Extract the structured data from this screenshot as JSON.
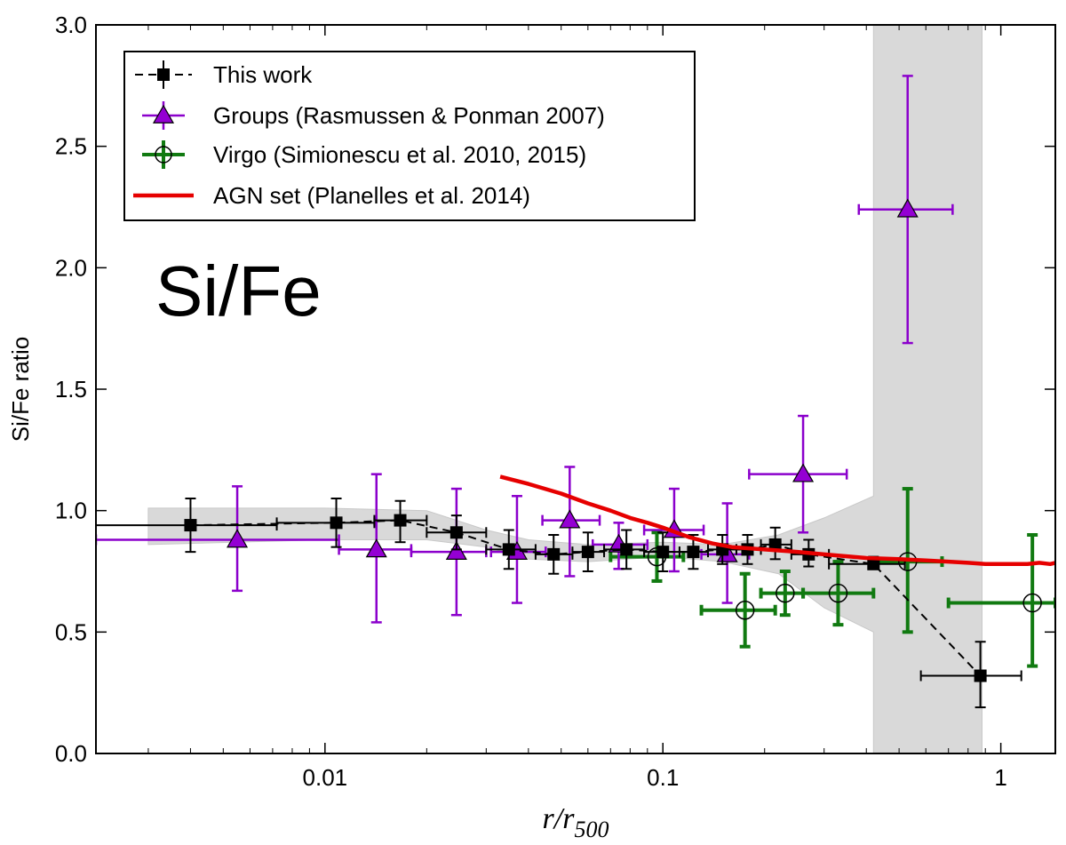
{
  "chart_data": {
    "type": "scatter",
    "annotation": "Si/Fe",
    "xlabel": "r/r500",
    "ylabel": "Si/Fe ratio",
    "xscale": "log",
    "xlim": [
      0.0021,
      1.45
    ],
    "ylim": [
      0.0,
      3.0
    ],
    "x_ticks": [
      {
        "value": 0.01,
        "label": "0.01"
      },
      {
        "value": 0.1,
        "label": "0.1"
      },
      {
        "value": 1,
        "label": "1"
      }
    ],
    "y_ticks": [
      {
        "value": 0.0,
        "label": "0.0"
      },
      {
        "value": 0.5,
        "label": "0.5"
      },
      {
        "value": 1.0,
        "label": "1.0"
      },
      {
        "value": 1.5,
        "label": "1.5"
      },
      {
        "value": 2.0,
        "label": "2.0"
      },
      {
        "value": 2.5,
        "label": "2.5"
      },
      {
        "value": 3.0,
        "label": "3.0"
      }
    ],
    "legend_position": "top-left",
    "colors": {
      "this_work": "#000000",
      "groups": "#8b00cc",
      "groups_marker": "#9400d3",
      "virgo": "#117a11",
      "agn": "#e60000",
      "band": "#d9d9d9"
    },
    "series": [
      {
        "name": "This work",
        "marker": "square",
        "linestyle": "dashed",
        "points": [
          {
            "x": 0.004,
            "y": 0.94,
            "xlo": 0.0021,
            "xhi": 0.0072,
            "ylo": 0.83,
            "yhi": 1.05
          },
          {
            "x": 0.0108,
            "y": 0.95,
            "xlo": 0.0072,
            "xhi": 0.014,
            "ylo": 0.85,
            "yhi": 1.05
          },
          {
            "x": 0.0167,
            "y": 0.96,
            "xlo": 0.014,
            "xhi": 0.02,
            "ylo": 0.87,
            "yhi": 1.04
          },
          {
            "x": 0.0245,
            "y": 0.91,
            "xlo": 0.02,
            "xhi": 0.03,
            "ylo": 0.84,
            "yhi": 0.98
          },
          {
            "x": 0.035,
            "y": 0.84,
            "xlo": 0.03,
            "xhi": 0.042,
            "ylo": 0.76,
            "yhi": 0.92
          },
          {
            "x": 0.0475,
            "y": 0.82,
            "xlo": 0.042,
            "xhi": 0.054,
            "ylo": 0.74,
            "yhi": 0.9
          },
          {
            "x": 0.06,
            "y": 0.83,
            "xlo": 0.054,
            "xhi": 0.067,
            "ylo": 0.75,
            "yhi": 0.91
          },
          {
            "x": 0.078,
            "y": 0.84,
            "xlo": 0.067,
            "xhi": 0.088,
            "ylo": 0.76,
            "yhi": 0.92
          },
          {
            "x": 0.1,
            "y": 0.83,
            "xlo": 0.088,
            "xhi": 0.112,
            "ylo": 0.75,
            "yhi": 0.91
          },
          {
            "x": 0.123,
            "y": 0.83,
            "xlo": 0.112,
            "xhi": 0.136,
            "ylo": 0.76,
            "yhi": 0.9
          },
          {
            "x": 0.15,
            "y": 0.84,
            "xlo": 0.136,
            "xhi": 0.165,
            "ylo": 0.78,
            "yhi": 0.9
          },
          {
            "x": 0.178,
            "y": 0.84,
            "xlo": 0.165,
            "xhi": 0.195,
            "ylo": 0.78,
            "yhi": 0.9
          },
          {
            "x": 0.215,
            "y": 0.86,
            "xlo": 0.195,
            "xhi": 0.24,
            "ylo": 0.8,
            "yhi": 0.93
          },
          {
            "x": 0.27,
            "y": 0.82,
            "xlo": 0.24,
            "xhi": 0.31,
            "ylo": 0.77,
            "yhi": 0.88
          },
          {
            "x": 0.42,
            "y": 0.78,
            "xlo": 0.31,
            "xhi": 0.52,
            "ylo": 0.76,
            "yhi": 0.81
          },
          {
            "x": 0.87,
            "y": 0.32,
            "xlo": 0.58,
            "xhi": 1.15,
            "ylo": 0.19,
            "yhi": 0.46
          }
        ]
      },
      {
        "name": "Groups (Rasmussen & Ponman 2007)",
        "marker": "triangle",
        "points": [
          {
            "x": 0.0055,
            "y": 0.88,
            "xlo": 0.0021,
            "xhi": 0.011,
            "ylo": 0.67,
            "yhi": 1.1
          },
          {
            "x": 0.0142,
            "y": 0.84,
            "xlo": 0.011,
            "xhi": 0.018,
            "ylo": 0.54,
            "yhi": 1.15
          },
          {
            "x": 0.0245,
            "y": 0.83,
            "xlo": 0.018,
            "xhi": 0.03,
            "ylo": 0.57,
            "yhi": 1.09
          },
          {
            "x": 0.037,
            "y": 0.83,
            "xlo": 0.031,
            "xhi": 0.045,
            "ylo": 0.62,
            "yhi": 1.06
          },
          {
            "x": 0.053,
            "y": 0.96,
            "xlo": 0.044,
            "xhi": 0.065,
            "ylo": 0.73,
            "yhi": 1.18
          },
          {
            "x": 0.074,
            "y": 0.86,
            "xlo": 0.062,
            "xhi": 0.09,
            "ylo": 0.76,
            "yhi": 0.95
          },
          {
            "x": 0.108,
            "y": 0.92,
            "xlo": 0.088,
            "xhi": 0.132,
            "ylo": 0.75,
            "yhi": 1.09
          },
          {
            "x": 0.155,
            "y": 0.82,
            "xlo": 0.13,
            "xhi": 0.18,
            "ylo": 0.62,
            "yhi": 1.03
          },
          {
            "x": 0.26,
            "y": 1.15,
            "xlo": 0.18,
            "xhi": 0.35,
            "ylo": 0.91,
            "yhi": 1.39
          },
          {
            "x": 0.53,
            "y": 2.24,
            "xlo": 0.38,
            "xhi": 0.72,
            "ylo": 1.69,
            "yhi": 2.79
          }
        ]
      },
      {
        "name": "Virgo (Simionescu et al. 2010, 2015)",
        "marker": "open-circle",
        "points": [
          {
            "x": 0.096,
            "y": 0.81,
            "xlo": 0.07,
            "xhi": 0.115,
            "ylo": 0.71,
            "yhi": 0.91
          },
          {
            "x": 0.175,
            "y": 0.59,
            "xlo": 0.13,
            "xhi": 0.215,
            "ylo": 0.44,
            "yhi": 0.74
          },
          {
            "x": 0.23,
            "y": 0.66,
            "xlo": 0.195,
            "xhi": 0.26,
            "ylo": 0.57,
            "yhi": 0.75
          },
          {
            "x": 0.33,
            "y": 0.66,
            "xlo": 0.26,
            "xhi": 0.42,
            "ylo": 0.53,
            "yhi": 0.79
          },
          {
            "x": 0.53,
            "y": 0.79,
            "xlo": 0.42,
            "xhi": 0.67,
            "ylo": 0.5,
            "yhi": 1.09
          },
          {
            "x": 1.24,
            "y": 0.62,
            "xlo": 0.7,
            "xhi": 1.45,
            "ylo": 0.36,
            "yhi": 0.9
          }
        ]
      },
      {
        "name": "AGN set (Planelles et al. 2014)",
        "type": "line",
        "points": [
          {
            "x": 0.033,
            "y": 1.14
          },
          {
            "x": 0.04,
            "y": 1.11
          },
          {
            "x": 0.05,
            "y": 1.07
          },
          {
            "x": 0.06,
            "y": 1.03
          },
          {
            "x": 0.07,
            "y": 1.0
          },
          {
            "x": 0.08,
            "y": 0.97
          },
          {
            "x": 0.09,
            "y": 0.95
          },
          {
            "x": 0.1,
            "y": 0.93
          },
          {
            "x": 0.12,
            "y": 0.89
          },
          {
            "x": 0.14,
            "y": 0.865
          },
          {
            "x": 0.16,
            "y": 0.85
          },
          {
            "x": 0.2,
            "y": 0.84
          },
          {
            "x": 0.25,
            "y": 0.83
          },
          {
            "x": 0.3,
            "y": 0.82
          },
          {
            "x": 0.4,
            "y": 0.805
          },
          {
            "x": 0.5,
            "y": 0.8
          },
          {
            "x": 0.6,
            "y": 0.795
          },
          {
            "x": 0.7,
            "y": 0.79
          },
          {
            "x": 0.8,
            "y": 0.785
          },
          {
            "x": 0.9,
            "y": 0.78
          },
          {
            "x": 1.0,
            "y": 0.78
          },
          {
            "x": 1.2,
            "y": 0.78
          },
          {
            "x": 1.3,
            "y": 0.785
          },
          {
            "x": 1.4,
            "y": 0.78
          },
          {
            "x": 1.45,
            "y": 0.785
          }
        ]
      }
    ],
    "uncertainty_band": {
      "upper": [
        {
          "x": 0.003,
          "y": 1.01
        },
        {
          "x": 0.01,
          "y": 1.01
        },
        {
          "x": 0.02,
          "y": 1.0
        },
        {
          "x": 0.03,
          "y": 0.92
        },
        {
          "x": 0.04,
          "y": 0.88
        },
        {
          "x": 0.06,
          "y": 0.86
        },
        {
          "x": 0.1,
          "y": 0.87
        },
        {
          "x": 0.15,
          "y": 0.86
        },
        {
          "x": 0.22,
          "y": 0.9
        },
        {
          "x": 0.3,
          "y": 0.97
        },
        {
          "x": 0.42,
          "y": 1.06
        },
        {
          "x": 0.42,
          "y": 3.0
        },
        {
          "x": 0.88,
          "y": 3.0
        }
      ],
      "lower": [
        {
          "x": 0.88,
          "y": 0.0
        },
        {
          "x": 0.42,
          "y": 0.0
        },
        {
          "x": 0.42,
          "y": 0.5
        },
        {
          "x": 0.3,
          "y": 0.6
        },
        {
          "x": 0.22,
          "y": 0.74
        },
        {
          "x": 0.15,
          "y": 0.79
        },
        {
          "x": 0.1,
          "y": 0.81
        },
        {
          "x": 0.06,
          "y": 0.79
        },
        {
          "x": 0.04,
          "y": 0.8
        },
        {
          "x": 0.03,
          "y": 0.85
        },
        {
          "x": 0.02,
          "y": 0.88
        },
        {
          "x": 0.01,
          "y": 0.88
        },
        {
          "x": 0.003,
          "y": 0.86
        }
      ]
    }
  }
}
